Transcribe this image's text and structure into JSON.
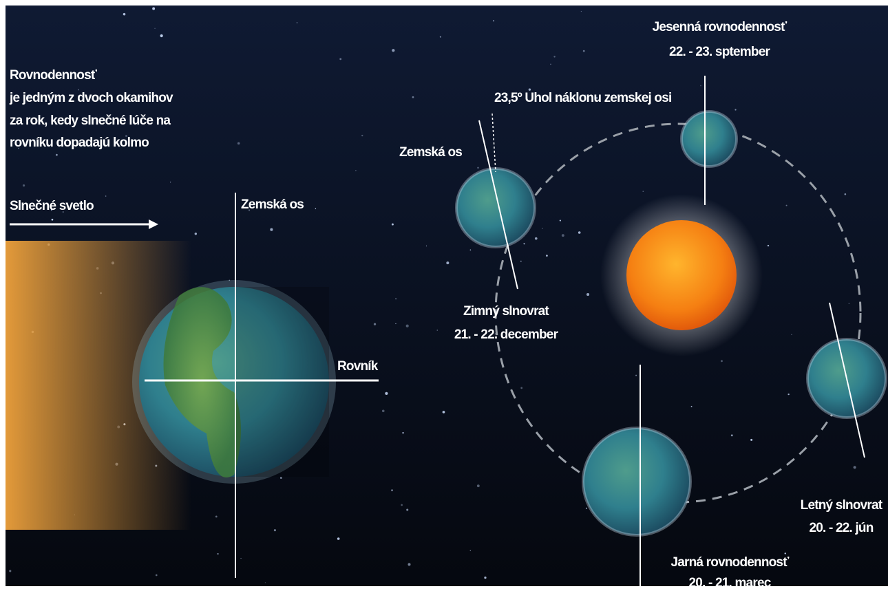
{
  "intro": {
    "title": "Rovnodennosť",
    "lines": [
      "je jedným z dvoch okamihov",
      "za rok, kedy slnečné lúče na",
      "rovníku dopadajú kolmo"
    ]
  },
  "sunlight": "Slnečné svetlo",
  "left_axis": "Zemská os",
  "equator": "Rovník",
  "right_axis": "Zemská os",
  "tilt": "23,5º Uhol náklonu zemskej osi",
  "autumn": {
    "name": "Jesenná rovnodennosť",
    "date": "22. - 23. sptember"
  },
  "winter": {
    "name": "Zimný slnovrat",
    "date": "21. - 22. december"
  },
  "summer": {
    "name": "Letný slnovrat",
    "date": "20. - 22. jún"
  },
  "spring": {
    "name": "Jarná rovnodennosť",
    "date": "20. - 21. marec"
  }
}
